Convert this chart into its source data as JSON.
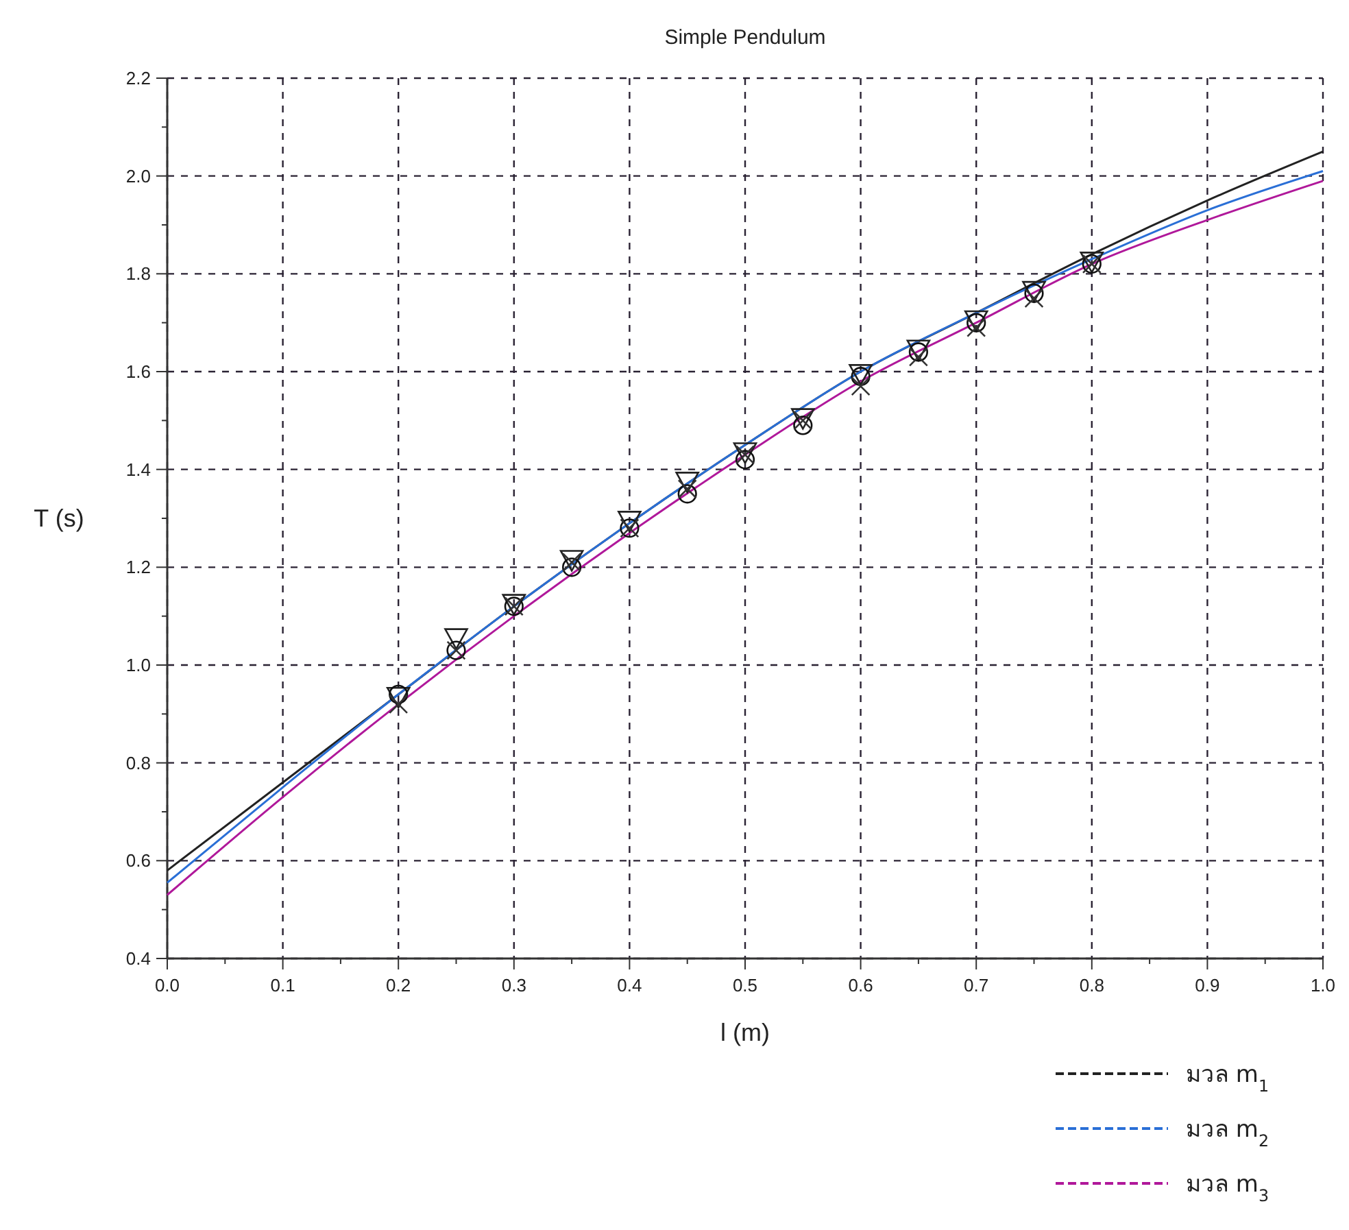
{
  "chart_data": {
    "type": "line",
    "title": "Simple Pendulum",
    "xlabel": "l (m)",
    "ylabel": "T (s)",
    "xlim": [
      0,
      1
    ],
    "ylim": [
      0.4,
      2.2
    ],
    "xticks": [
      {
        "value": 0,
        "label": "0.0"
      },
      0.1,
      0.2,
      0.3,
      0.4,
      0.5,
      0.6,
      0.7,
      0.8,
      0.9,
      {
        "value": 1,
        "label": "1.0"
      }
    ],
    "yticks": [
      0.4,
      0.6,
      0.8,
      {
        "value": 1,
        "label": "1.0"
      },
      1.2,
      1.4,
      1.6,
      1.8,
      {
        "value": 2,
        "label": "2.0"
      },
      2.2
    ],
    "grid": true,
    "legend": "bottom right",
    "line_style": "solid",
    "series": [
      {
        "name": "มวล m$_{1}$",
        "color": "#222222",
        "x": [
          0,
          0.1,
          0.2,
          0.3,
          0.4,
          0.5,
          0.6,
          0.7,
          0.8,
          0.9,
          1
        ],
        "values": [
          0.58,
          0.76,
          0.94,
          1.12,
          1.29,
          1.45,
          1.6,
          1.72,
          1.84,
          1.95,
          2.05
        ]
      },
      {
        "name": "มวล m$_{2}$",
        "color": "#2a6fd6",
        "x": [
          0,
          0.1,
          0.2,
          0.3,
          0.4,
          0.5,
          0.6,
          0.7,
          0.8,
          0.9,
          1
        ],
        "values": [
          0.555,
          0.75,
          0.94,
          1.12,
          1.29,
          1.45,
          1.6,
          1.72,
          1.83,
          1.93,
          2.01
        ]
      },
      {
        "name": "มวล m$_{3}$",
        "color": "#b0189a",
        "x": [
          0,
          0.1,
          0.2,
          0.3,
          0.4,
          0.5,
          0.6,
          0.7,
          0.8,
          0.9,
          1
        ],
        "values": [
          0.53,
          0.73,
          0.92,
          1.1,
          1.27,
          1.43,
          1.58,
          1.7,
          1.82,
          1.91,
          1.99
        ]
      },
      {
        "type": "scatter",
        "marker": "triangle",
        "color": "#222222",
        "x": [
          0.2,
          0.25,
          0.3,
          0.35,
          0.4,
          0.45,
          0.5,
          0.55,
          0.6,
          0.65,
          0.7,
          0.75,
          0.8
        ],
        "values": [
          0.94,
          1.06,
          1.13,
          1.22,
          1.3,
          1.38,
          1.44,
          1.51,
          1.6,
          1.65,
          1.71,
          1.77,
          1.83
        ]
      },
      {
        "type": "scatter",
        "marker": "circle",
        "color": "#111111",
        "x": [
          0.2,
          0.25,
          0.3,
          0.35,
          0.4,
          0.45,
          0.5,
          0.55,
          0.6,
          0.65,
          0.7,
          0.75,
          0.8
        ],
        "values": [
          0.94,
          1.03,
          1.12,
          1.2,
          1.28,
          1.35,
          1.42,
          1.49,
          1.59,
          1.64,
          1.7,
          1.76,
          1.82
        ]
      },
      {
        "type": "scatter",
        "marker": "cross",
        "color": "#333333",
        "x": [
          0.2,
          0.25,
          0.3,
          0.35,
          0.4,
          0.45,
          0.5,
          0.55,
          0.6,
          0.65,
          0.7,
          0.75,
          0.8
        ],
        "values": [
          0.92,
          1.03,
          1.12,
          1.21,
          1.28,
          1.36,
          1.43,
          1.5,
          1.57,
          1.63,
          1.69,
          1.75,
          1.82
        ]
      }
    ]
  }
}
